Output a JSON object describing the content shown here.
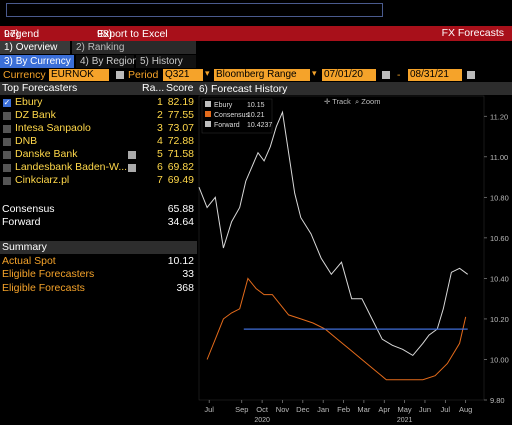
{
  "toolbar": {
    "legend_num": "97)",
    "legend_label": "Legend",
    "export_num": "98)",
    "export_label": "Export to Excel",
    "title": "FX Forecasts"
  },
  "tabs_top": [
    {
      "num": "1)",
      "label": "Overview"
    },
    {
      "num": "2)",
      "label": "Ranking"
    }
  ],
  "tabs_sub": [
    {
      "num": "3)",
      "label": "By Currency"
    },
    {
      "num": "4)",
      "label": "By Region"
    },
    {
      "num": "5)",
      "label": "History"
    }
  ],
  "controls": {
    "currency_label": "Currency",
    "currency_value": "EURNOK",
    "period_label": "Period",
    "period_value": "Q321",
    "range_value": "Bloomberg Range",
    "date_from": "07/01/20",
    "dash": "-",
    "date_to": "08/31/21"
  },
  "left": {
    "header_label": "Top Forecasters",
    "header_rank": "Ra...",
    "header_score": "Score",
    "forecasters": [
      {
        "name": "Ebury",
        "rank": "1",
        "score": "82.19",
        "checked": true,
        "flag": false
      },
      {
        "name": "DZ Bank",
        "rank": "2",
        "score": "77.55",
        "checked": false,
        "flag": false
      },
      {
        "name": "Intesa Sanpaolo",
        "rank": "3",
        "score": "73.07",
        "checked": false,
        "flag": false
      },
      {
        "name": "DNB",
        "rank": "4",
        "score": "72.88",
        "checked": false,
        "flag": false
      },
      {
        "name": "Danske Bank",
        "rank": "5",
        "score": "71.58",
        "checked": false,
        "flag": true
      },
      {
        "name": "Landesbank Baden-W...",
        "rank": "6",
        "score": "69.82",
        "checked": false,
        "flag": true
      },
      {
        "name": "Cinkciarz.pl",
        "rank": "7",
        "score": "69.49",
        "checked": false,
        "flag": false
      }
    ],
    "consensus_label": "Consensus",
    "consensus_value": "65.88",
    "forward_label": "Forward",
    "forward_value": "34.64",
    "summary_label": "Summary",
    "actual_spot_label": "Actual Spot",
    "actual_spot_value": "10.12",
    "eligible_forecasters_label": "Eligible Forecasters",
    "eligible_forecasters_value": "33",
    "eligible_forecasts_label": "Eligible Forecasts",
    "eligible_forecasts_value": "368"
  },
  "chart_header": {
    "icon_num": "6)",
    "title": "Forecast History",
    "track_label": "Track",
    "zoom_label": "Zoom"
  },
  "chart_data": {
    "type": "line",
    "ylim": [
      9.8,
      11.3
    ],
    "yticks": [
      "11.20",
      "11.00",
      "10.80",
      "10.60",
      "10.40",
      "10.20",
      "10.00",
      "9.80"
    ],
    "ytick_values": [
      11.2,
      11.0,
      10.8,
      10.6,
      10.4,
      10.2,
      10.0,
      9.8
    ],
    "months": [
      "Jul",
      "Sep",
      "Oct",
      "Nov",
      "Dec",
      "Jan",
      "Feb",
      "Mar",
      "Apr",
      "May",
      "Jun",
      "Jul",
      "Aug"
    ],
    "month_positions": [
      0.5,
      2.1,
      3.1,
      4.1,
      5.1,
      6.1,
      7.1,
      8.1,
      9.1,
      10.1,
      11.1,
      12.1,
      13.1
    ],
    "years": [
      {
        "label": "2020",
        "pos": 3.1
      },
      {
        "label": "2021",
        "pos": 10.1
      }
    ],
    "xlim": [
      0,
      14
    ],
    "legend": [
      {
        "name": "Ebury",
        "value": "10.15",
        "color": "#bfbfbf"
      },
      {
        "name": "Consensus",
        "value": "10.21",
        "color": "#e46b1b"
      },
      {
        "name": "Forward",
        "value": "10.4237",
        "color": "#bfbfbf"
      }
    ],
    "series": [
      {
        "name": "Forward",
        "color": "#d9d9d9",
        "x": [
          0,
          0.4,
          0.8,
          1.2,
          1.6,
          2.0,
          2.3,
          2.6,
          2.9,
          3.2,
          3.5,
          3.8,
          4.1,
          4.4,
          4.7,
          5.0,
          5.5,
          6.0,
          6.5,
          7.0,
          7.5,
          8.0,
          8.5,
          9.0,
          9.5,
          10.0,
          10.5,
          11.0,
          11.3,
          11.7,
          12.0,
          12.4,
          12.8,
          13.2
        ],
        "y": [
          10.85,
          10.75,
          10.8,
          10.55,
          10.68,
          10.75,
          10.88,
          10.95,
          11.02,
          10.98,
          11.05,
          11.15,
          11.22,
          11.02,
          10.82,
          10.7,
          10.62,
          10.5,
          10.42,
          10.48,
          10.3,
          10.3,
          10.2,
          10.1,
          10.07,
          10.05,
          10.02,
          10.08,
          10.12,
          10.15,
          10.25,
          10.43,
          10.45,
          10.42
        ]
      },
      {
        "name": "Consensus",
        "color": "#e46b1b",
        "x": [
          0.4,
          0.8,
          1.2,
          1.6,
          2.0,
          2.4,
          2.8,
          3.2,
          3.6,
          4.0,
          4.4,
          5.0,
          5.6,
          6.2,
          6.8,
          7.4,
          8.0,
          8.6,
          9.2,
          9.8,
          10.4,
          11.0,
          11.6,
          12.2,
          12.8,
          13.1
        ],
        "y": [
          10.0,
          10.1,
          10.2,
          10.23,
          10.25,
          10.4,
          10.35,
          10.32,
          10.32,
          10.27,
          10.22,
          10.2,
          10.18,
          10.15,
          10.1,
          10.05,
          10.0,
          9.95,
          9.9,
          9.9,
          9.9,
          9.9,
          9.92,
          9.98,
          10.08,
          10.21
        ]
      },
      {
        "name": "Actual Spot",
        "color": "#3f6ed8",
        "x": [
          2.2,
          13.2
        ],
        "y": [
          10.15,
          10.15
        ]
      }
    ]
  }
}
